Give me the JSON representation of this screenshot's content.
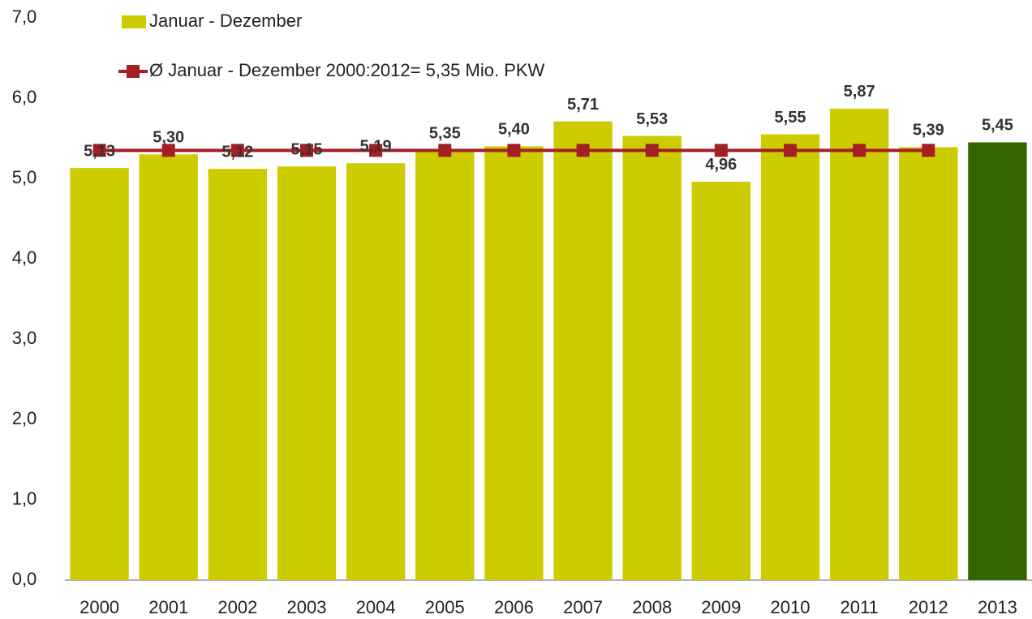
{
  "chart_data": {
    "type": "bar",
    "categories": [
      "2000",
      "2001",
      "2002",
      "2003",
      "2004",
      "2005",
      "2006",
      "2007",
      "2008",
      "2009",
      "2010",
      "2011",
      "2012",
      "2013"
    ],
    "series": [
      {
        "name": "Januar - Dezember",
        "type": "bar",
        "color": "#cccc00",
        "colors": [
          "#cccc00",
          "#cccc00",
          "#cccc00",
          "#cccc00",
          "#cccc00",
          "#cccc00",
          "#cccc00",
          "#cccc00",
          "#cccc00",
          "#cccc00",
          "#cccc00",
          "#cccc00",
          "#cccc00",
          "#336600"
        ],
        "values": [
          5.13,
          5.3,
          5.12,
          5.15,
          5.19,
          5.35,
          5.4,
          5.71,
          5.53,
          4.96,
          5.55,
          5.87,
          5.39,
          5.45
        ],
        "value_labels": [
          "5,13",
          "5,30",
          "5,12",
          "5,15",
          "5,19",
          "5,35",
          "5,40",
          "5,71",
          "5,53",
          "4,96",
          "5,55",
          "5,87",
          "5,39",
          "5,45"
        ]
      },
      {
        "name": "Ø Januar - Dezember 2000:2012= 5,35 Mio. PKW",
        "type": "line",
        "color": "#a31f24",
        "values": [
          5.35,
          5.35,
          5.35,
          5.35,
          5.35,
          5.35,
          5.35,
          5.35,
          5.35,
          5.35,
          5.35,
          5.35,
          5.35,
          null
        ]
      }
    ],
    "ylim": [
      0,
      7
    ],
    "yticks": [
      {
        "value": 0,
        "label": "0,0"
      },
      {
        "value": 1,
        "label": "1,0"
      },
      {
        "value": 2,
        "label": "2,0"
      },
      {
        "value": 3,
        "label": "3,0"
      },
      {
        "value": 4,
        "label": "4,0"
      },
      {
        "value": 5,
        "label": "5,0"
      },
      {
        "value": 6,
        "label": "6,0"
      },
      {
        "value": 7,
        "label": "7,0"
      }
    ],
    "grid": false,
    "legend": "top-left"
  }
}
